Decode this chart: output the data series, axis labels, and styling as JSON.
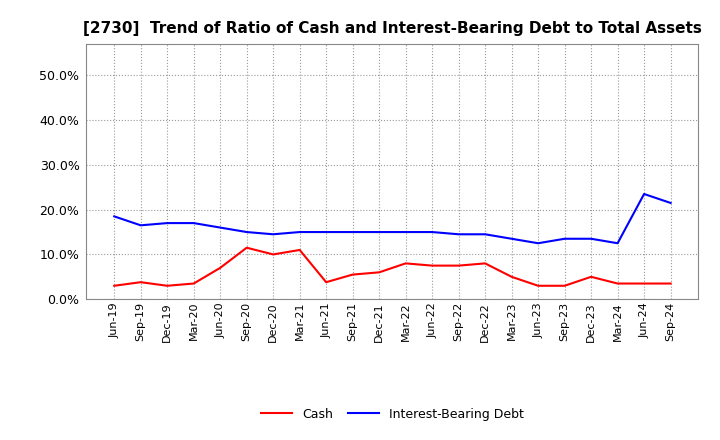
{
  "title": "[2730]  Trend of Ratio of Cash and Interest-Bearing Debt to Total Assets",
  "x_labels": [
    "Jun-19",
    "Sep-19",
    "Dec-19",
    "Mar-20",
    "Jun-20",
    "Sep-20",
    "Dec-20",
    "Mar-21",
    "Jun-21",
    "Sep-21",
    "Dec-21",
    "Mar-22",
    "Jun-22",
    "Sep-22",
    "Dec-22",
    "Mar-23",
    "Jun-23",
    "Sep-23",
    "Dec-23",
    "Mar-24",
    "Jun-24",
    "Sep-24"
  ],
  "cash": [
    3.0,
    3.8,
    3.0,
    3.5,
    7.0,
    11.5,
    10.0,
    11.0,
    3.8,
    5.5,
    6.0,
    8.0,
    7.5,
    7.5,
    8.0,
    5.0,
    3.0,
    3.0,
    5.0,
    3.5,
    3.5,
    3.5
  ],
  "interest_bearing_debt": [
    18.5,
    16.5,
    17.0,
    17.0,
    16.0,
    15.0,
    14.5,
    15.0,
    15.0,
    15.0,
    15.0,
    15.0,
    15.0,
    14.5,
    14.5,
    13.5,
    12.5,
    13.5,
    13.5,
    12.5,
    23.5,
    21.5
  ],
  "cash_color": "#FF0000",
  "ibd_color": "#0000FF",
  "ylim": [
    0,
    57
  ],
  "yticks": [
    0.0,
    10.0,
    20.0,
    30.0,
    40.0,
    50.0
  ],
  "background_color": "#FFFFFF",
  "grid_color": "#999999",
  "legend_cash": "Cash",
  "legend_ibd": "Interest-Bearing Debt",
  "title_fontsize": 11
}
